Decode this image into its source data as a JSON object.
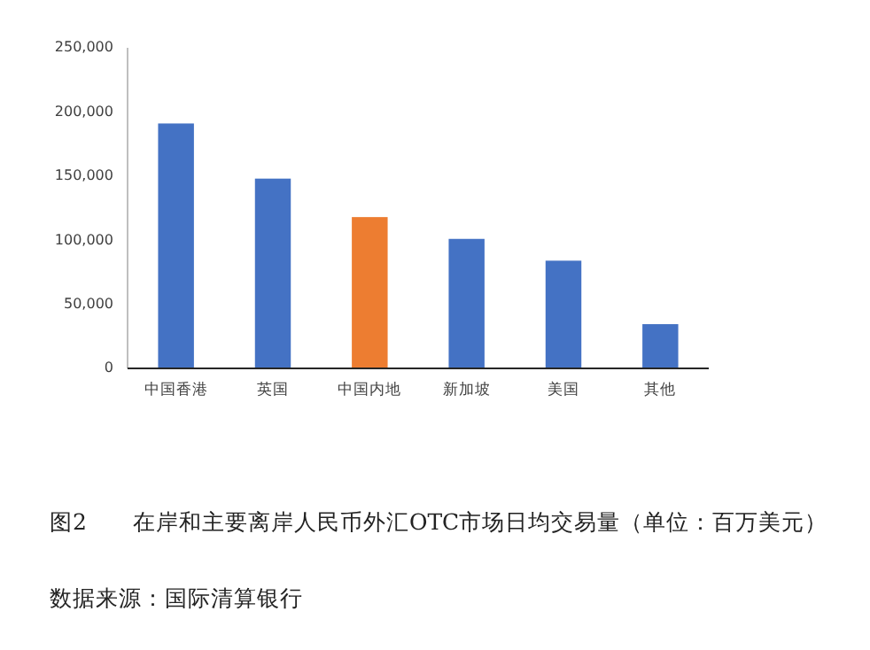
{
  "chart_data": {
    "type": "bar",
    "title": "图2　　在岸和主要离岸人民币外汇OTC市场日均交易量（单位：百万美元）",
    "categories": [
      "中国香港",
      "英国",
      "中国内地",
      "新加坡",
      "美国",
      "其他"
    ],
    "values": [
      191000,
      148000,
      118000,
      101000,
      84000,
      34500
    ],
    "colors": [
      "#4472c4",
      "#4472c4",
      "#ed7d31",
      "#4472c4",
      "#4472c4",
      "#4472c4"
    ],
    "ylim": [
      0,
      250000
    ],
    "yticks": [
      {
        "value": 0,
        "label": "0"
      },
      {
        "value": 50000,
        "label": "50,000"
      },
      {
        "value": 100000,
        "label": "100,000"
      },
      {
        "value": 150000,
        "label": "150,000"
      },
      {
        "value": 200000,
        "label": "200,000"
      },
      {
        "value": 250000,
        "label": "250,000"
      }
    ],
    "grid": false,
    "annotations": [
      "数据来源：国际清算银行"
    ]
  }
}
